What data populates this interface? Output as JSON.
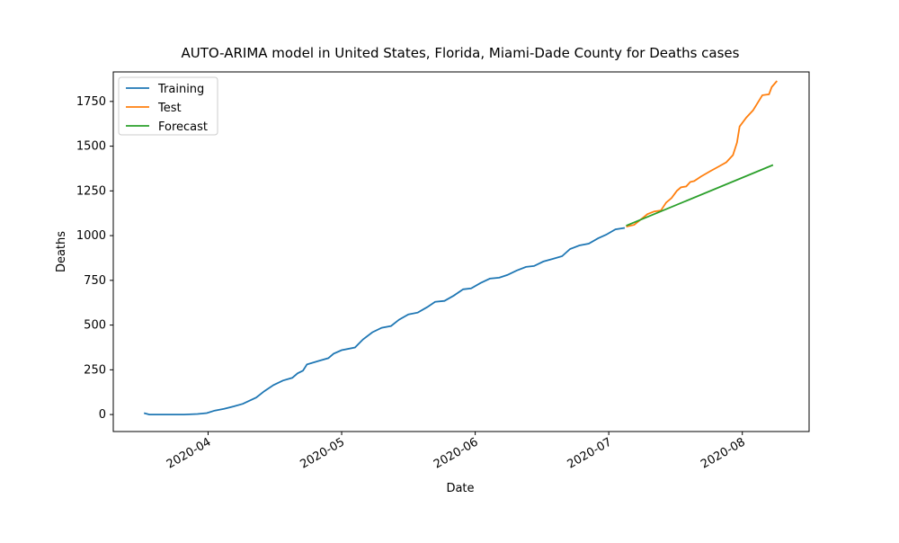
{
  "chart_data": {
    "type": "line",
    "title": "AUTO-ARIMA model in United States, Florida, Miami-Dade County for Deaths cases",
    "x_label": "Date",
    "y_label": "Deaths",
    "xlim": [
      3.29,
      8.5
    ],
    "ylim": [
      -95,
      1915
    ],
    "xticks": [
      {
        "value": 4,
        "label": "2020-04"
      },
      {
        "value": 5,
        "label": "2020-05"
      },
      {
        "value": 6,
        "label": "2020-06"
      },
      {
        "value": 7,
        "label": "2020-07"
      },
      {
        "value": 8,
        "label": "2020-08"
      }
    ],
    "yticks": [
      0,
      250,
      500,
      750,
      1000,
      1250,
      1500,
      1750
    ],
    "grid": false,
    "legend": "upper left",
    "series": [
      {
        "name": "Training",
        "color": "#1f77b4",
        "x": [
          3.52,
          3.56,
          3.82,
          3.92,
          3.99,
          4.05,
          4.12,
          4.19,
          4.26,
          4.36,
          4.42,
          4.49,
          4.56,
          4.63,
          4.67,
          4.71,
          4.74,
          4.83,
          4.9,
          4.94,
          5.0,
          5.1,
          5.16,
          5.23,
          5.3,
          5.37,
          5.43,
          5.5,
          5.57,
          5.64,
          5.7,
          5.77,
          5.84,
          5.91,
          5.97,
          6.04,
          6.11,
          6.18,
          6.24,
          6.31,
          6.38,
          6.44,
          6.51,
          6.58,
          6.65,
          6.71,
          6.78,
          6.85,
          6.92,
          6.98,
          7.05,
          7.12
        ],
        "values": [
          8,
          0,
          0,
          3,
          8,
          22,
          32,
          45,
          60,
          95,
          130,
          165,
          190,
          205,
          230,
          245,
          280,
          300,
          315,
          340,
          360,
          375,
          420,
          460,
          485,
          495,
          530,
          560,
          570,
          600,
          630,
          635,
          665,
          700,
          705,
          735,
          760,
          765,
          780,
          805,
          825,
          830,
          855,
          870,
          885,
          925,
          945,
          955,
          985,
          1005,
          1035,
          1043
        ]
      },
      {
        "name": "Test",
        "color": "#ff7f0e",
        "x": [
          7.13,
          7.19,
          7.24,
          7.29,
          7.34,
          7.39,
          7.43,
          7.47,
          7.51,
          7.54,
          7.58,
          7.61,
          7.64,
          7.69,
          7.76,
          7.82,
          7.88,
          7.93,
          7.96,
          7.98,
          8.03,
          8.08,
          8.13,
          8.15,
          8.2,
          8.22,
          8.26
        ],
        "values": [
          1050,
          1060,
          1090,
          1120,
          1135,
          1140,
          1185,
          1210,
          1250,
          1270,
          1275,
          1300,
          1305,
          1330,
          1360,
          1385,
          1410,
          1450,
          1520,
          1610,
          1660,
          1700,
          1760,
          1785,
          1790,
          1830,
          1865
        ]
      },
      {
        "name": "Forecast",
        "color": "#2ca02c",
        "x": [
          7.13,
          8.23
        ],
        "values": [
          1055,
          1395
        ]
      }
    ]
  }
}
